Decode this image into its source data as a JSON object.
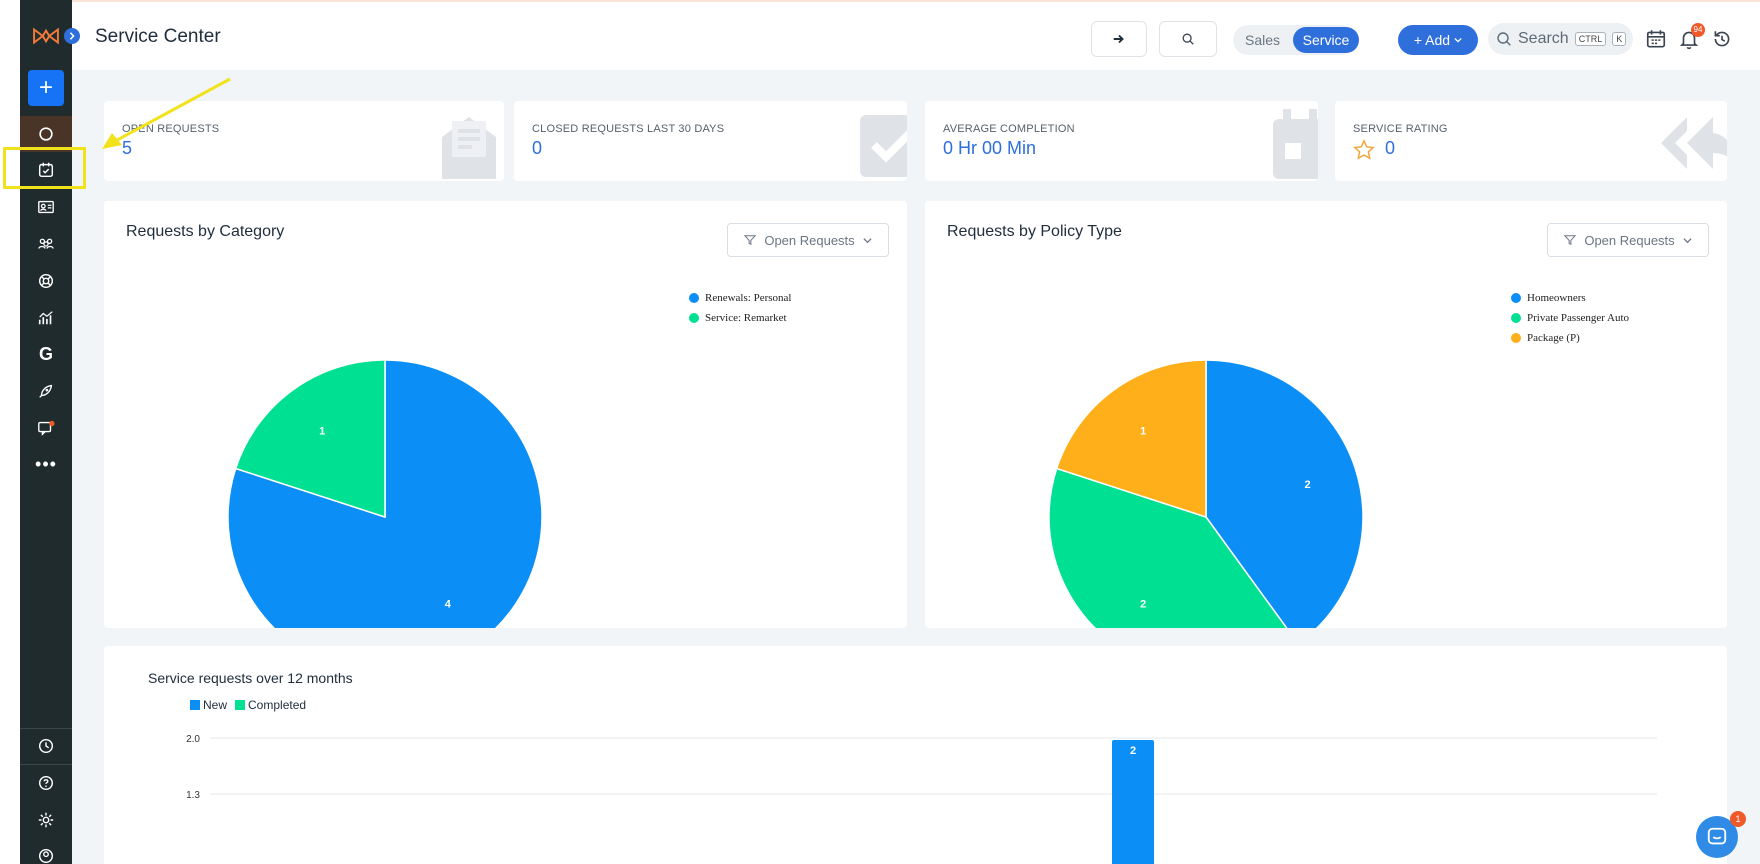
{
  "header": {
    "title": "Service Center",
    "toggle": {
      "sales": "Sales",
      "service": "Service"
    },
    "add_label": "+ Add",
    "search_placeholder": "Search",
    "kbd_ctrl": "CTRL",
    "kbd_k": "K",
    "notification_count": "94"
  },
  "sidebar": {
    "items": [
      "logo",
      "create",
      "dashboard",
      "tasks",
      "contacts",
      "groups",
      "support",
      "analytics",
      "google",
      "marketing",
      "messages",
      "more",
      "history",
      "help",
      "settings",
      "profile"
    ]
  },
  "stats": [
    {
      "label": "OPEN REQUESTS",
      "value": "5"
    },
    {
      "label": "CLOSED REQUESTS LAST 30 DAYS",
      "value": "0"
    },
    {
      "label": "AVERAGE COMPLETION",
      "value": "0 Hr 00 Min"
    },
    {
      "label": "SERVICE RATING",
      "value": "0"
    }
  ],
  "colors": {
    "accent": "#2f6fdc",
    "blue": "#0b8ff6",
    "green": "#00e092",
    "orange": "#feaf1a",
    "highlight": "#f2e21b"
  },
  "chart_data": [
    {
      "type": "pie",
      "title": "Requests by Category",
      "filter": "Open Requests",
      "categories": [
        "Renewals: Personal",
        "Service: Remarket"
      ],
      "values": [
        4,
        1
      ],
      "colors": [
        "#0b8ff6",
        "#00e092"
      ],
      "legend": "top-right"
    },
    {
      "type": "pie",
      "title": "Requests by Policy Type",
      "filter": "Open Requests",
      "categories": [
        "Homeowners",
        "Private Passenger Auto",
        "Package (P)"
      ],
      "values": [
        2,
        2,
        1
      ],
      "colors": [
        "#0b8ff6",
        "#00e092",
        "#feaf1a"
      ],
      "legend": "top-right"
    },
    {
      "type": "bar",
      "title": "Service requests over 12 months",
      "series": [
        {
          "name": "New",
          "color": "#0b8ff6"
        },
        {
          "name": "Completed",
          "color": "#00e092"
        }
      ],
      "visible_bars": [
        {
          "label": "",
          "value": 2
        }
      ],
      "y_ticks": [
        "2.0",
        "1.3"
      ],
      "ylim": [
        0,
        2
      ],
      "grid": true,
      "legend": "top-left"
    }
  ],
  "help": {
    "badge": "1"
  }
}
